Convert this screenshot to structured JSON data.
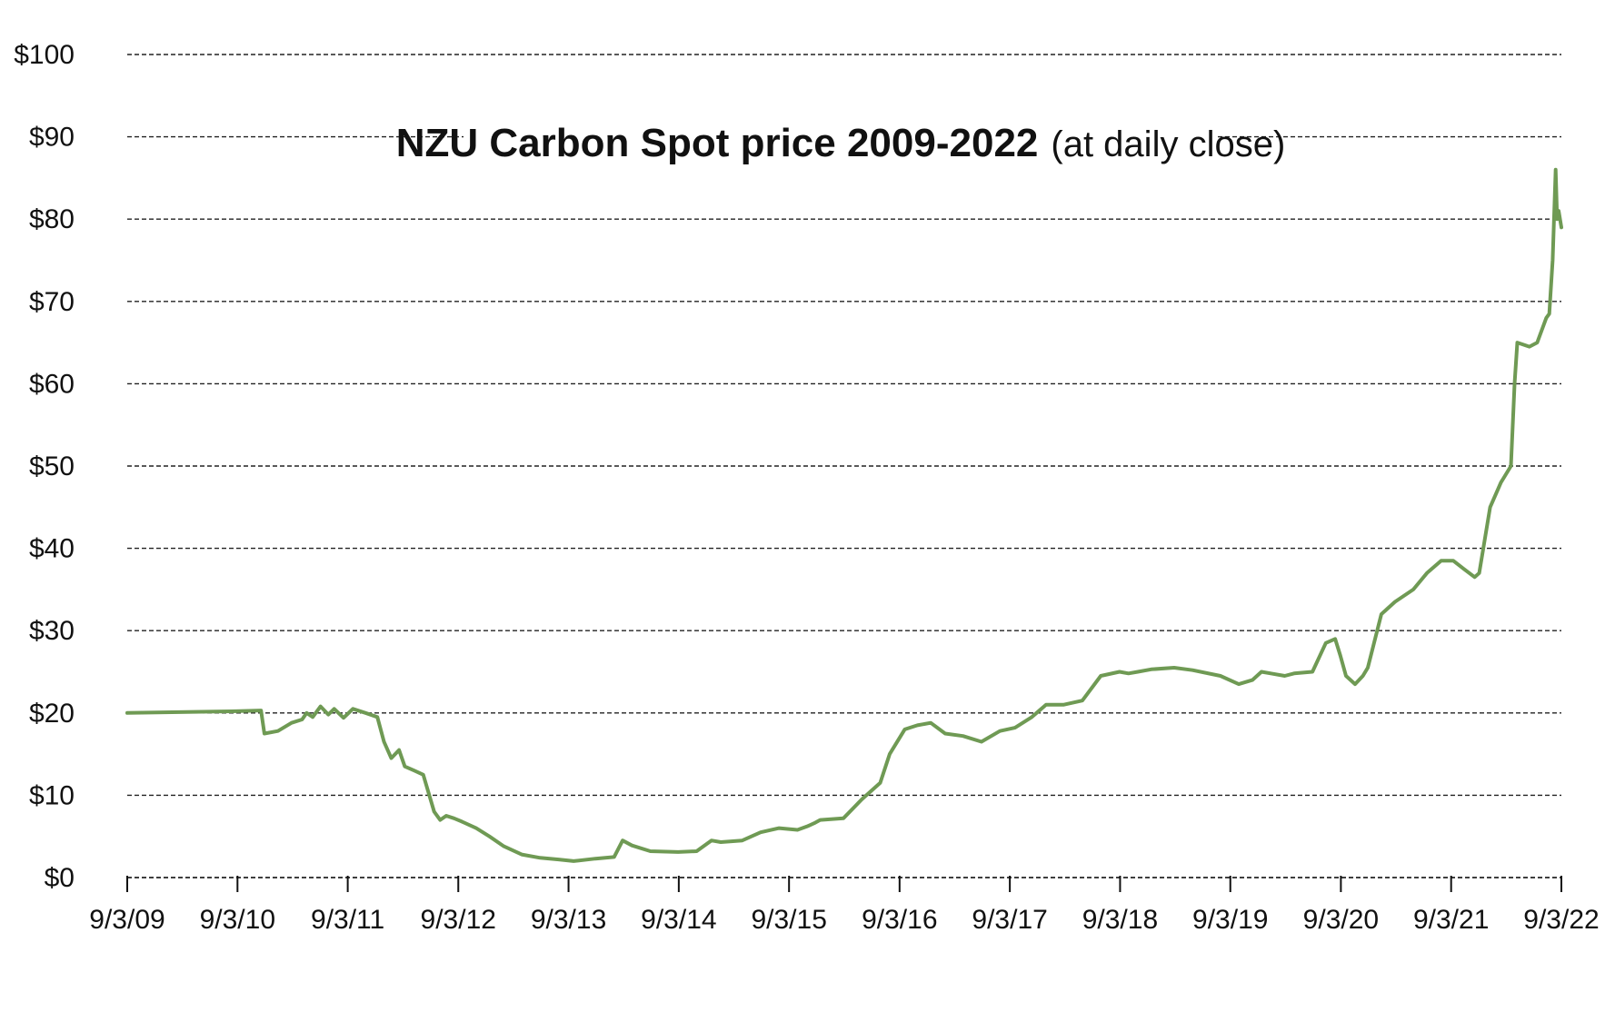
{
  "chart_data": {
    "type": "line",
    "title": "NZU Carbon Spot price 2009-2022",
    "subtitle": "(at daily close)",
    "xlabel": "",
    "ylabel": "",
    "ylim": [
      0,
      100
    ],
    "xlim": [
      "2009-09-03",
      "2022-09-03"
    ],
    "grid": "horizontal dashed",
    "y_ticks": [
      {
        "value": 0,
        "label": "$0"
      },
      {
        "value": 10,
        "label": "$10"
      },
      {
        "value": 20,
        "label": "$20"
      },
      {
        "value": 30,
        "label": "$30"
      },
      {
        "value": 40,
        "label": "$40"
      },
      {
        "value": 50,
        "label": "$50"
      },
      {
        "value": 60,
        "label": "$60"
      },
      {
        "value": 70,
        "label": "$70"
      },
      {
        "value": 80,
        "label": "$80"
      },
      {
        "value": 90,
        "label": "$90"
      },
      {
        "value": 100,
        "label": "$100"
      }
    ],
    "x_ticks": [
      {
        "value": "2009-09-03",
        "label": "9/3/09"
      },
      {
        "value": "2010-09-03",
        "label": "9/3/10"
      },
      {
        "value": "2011-09-03",
        "label": "9/3/11"
      },
      {
        "value": "2012-09-03",
        "label": "9/3/12"
      },
      {
        "value": "2013-09-03",
        "label": "9/3/13"
      },
      {
        "value": "2014-09-03",
        "label": "9/3/14"
      },
      {
        "value": "2015-09-03",
        "label": "9/3/15"
      },
      {
        "value": "2016-09-03",
        "label": "9/3/16"
      },
      {
        "value": "2017-09-03",
        "label": "9/3/17"
      },
      {
        "value": "2018-09-03",
        "label": "9/3/18"
      },
      {
        "value": "2019-09-03",
        "label": "9/3/19"
      },
      {
        "value": "2020-09-03",
        "label": "9/3/20"
      },
      {
        "value": "2021-09-03",
        "label": "9/3/21"
      },
      {
        "value": "2022-09-03",
        "label": "9/3/22"
      }
    ],
    "line_color": "#6f9a54",
    "series": [
      {
        "x": [
          "2009-09-03",
          "2010-08-15",
          "2010-11-20",
          "2010-12-01",
          "2011-01-15",
          "2011-03-01",
          "2011-04-05",
          "2011-04-20",
          "2011-05-10",
          "2011-06-05",
          "2011-07-01",
          "2011-07-20",
          "2011-08-20",
          "2011-09-20",
          "2011-11-01",
          "2011-12-10",
          "2012-01-01",
          "2012-01-25",
          "2012-02-20",
          "2012-03-10",
          "2012-04-10",
          "2012-05-10",
          "2012-06-15",
          "2012-07-05",
          "2012-07-25",
          "2012-08-20",
          "2012-09-15",
          "2012-11-01",
          "2012-12-15",
          "2013-02-01",
          "2013-04-01",
          "2013-06-01",
          "2013-08-01",
          "2013-09-20",
          "2013-12-01",
          "2014-02-01",
          "2014-03-01",
          "2014-04-01",
          "2014-06-01",
          "2014-09-01",
          "2014-11-01",
          "2014-12-20",
          "2015-01-20",
          "2015-04-01",
          "2015-06-01",
          "2015-08-01",
          "2015-10-01",
          "2015-11-01",
          "2015-11-25",
          "2015-12-15",
          "2016-03-01",
          "2016-05-01",
          "2016-07-01",
          "2016-08-01",
          "2016-09-20",
          "2016-11-01",
          "2016-12-15",
          "2017-02-01",
          "2017-04-01",
          "2017-06-01",
          "2017-08-01",
          "2017-09-20",
          "2017-11-15",
          "2018-01-01",
          "2018-03-01",
          "2018-05-01",
          "2018-07-01",
          "2018-09-01",
          "2018-10-01",
          "2018-11-01",
          "2018-12-15",
          "2019-03-01",
          "2019-05-01",
          "2019-08-01",
          "2019-10-01",
          "2019-11-15",
          "2019-12-15",
          "2020-01-15",
          "2020-03-01",
          "2020-04-01",
          "2020-06-01",
          "2020-07-15",
          "2020-08-15",
          "2020-09-01",
          "2020-09-20",
          "2020-10-20",
          "2020-11-15",
          "2020-12-01",
          "2021-01-15",
          "2021-03-01",
          "2021-05-01",
          "2021-06-15",
          "2021-08-01",
          "2021-09-10",
          "2021-10-15",
          "2021-11-20",
          "2021-12-05",
          "2022-01-10",
          "2022-02-15",
          "2022-03-20",
          "2022-04-01",
          "2022-04-10",
          "2022-05-20",
          "2022-06-15",
          "2022-07-15",
          "2022-07-25",
          "2022-08-05",
          "2022-08-15",
          "2022-08-20",
          "2022-08-25",
          "2022-09-03"
        ],
        "values": [
          20,
          20.2,
          20.3,
          17.5,
          17.8,
          18.8,
          19.2,
          20.0,
          19.5,
          20.8,
          19.8,
          20.5,
          19.4,
          20.5,
          20.0,
          19.5,
          16.5,
          14.5,
          15.5,
          13.5,
          13.0,
          12.5,
          8.0,
          7.0,
          7.5,
          7.2,
          6.8,
          6.0,
          5.0,
          3.8,
          2.8,
          2.4,
          2.2,
          2.0,
          2.3,
          2.5,
          4.5,
          3.9,
          3.2,
          3.1,
          3.2,
          4.5,
          4.3,
          4.5,
          5.5,
          6.0,
          5.8,
          6.2,
          6.6,
          7.0,
          7.2,
          9.5,
          11.5,
          15.0,
          18.0,
          18.5,
          18.8,
          17.5,
          17.2,
          16.5,
          17.8,
          18.2,
          19.5,
          21.0,
          21.0,
          21.5,
          24.5,
          25.0,
          24.8,
          25.0,
          25.3,
          25.5,
          25.2,
          24.5,
          23.5,
          24.0,
          25.0,
          24.8,
          24.5,
          24.8,
          25.0,
          28.5,
          29.0,
          27.0,
          24.5,
          23.5,
          24.5,
          25.5,
          32.0,
          33.5,
          35.0,
          37.0,
          38.5,
          38.5,
          37.5,
          36.5,
          37.0,
          45.0,
          48.0,
          50.0,
          60.0,
          65.0,
          64.5,
          65.0,
          68.0,
          68.5,
          75.0,
          86.0,
          80.0,
          81.0,
          79.0
        ]
      }
    ]
  }
}
